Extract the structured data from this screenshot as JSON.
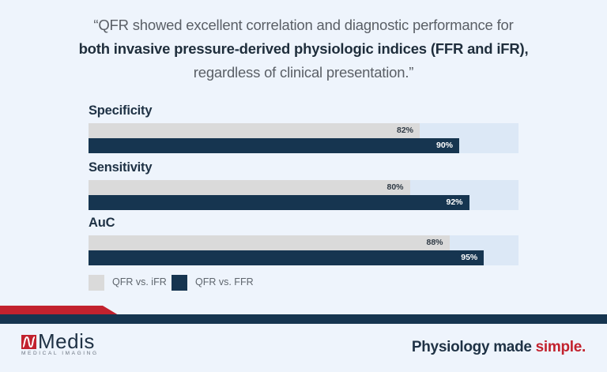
{
  "quote": {
    "line1": "“QFR showed excellent correlation and diagnostic performance for",
    "line2": "both invasive pressure-derived physiologic indices (FFR and iFR),",
    "line3": "regardless of clinical presentation.”"
  },
  "chart_data": {
    "type": "bar",
    "orientation": "horizontal",
    "title": "",
    "categories": [
      "Specificity",
      "Sensitivity",
      "AuC"
    ],
    "series": [
      {
        "name": "QFR vs. iFR",
        "values": [
          82,
          80,
          88
        ],
        "labels": [
          "82%",
          "80%",
          "88%"
        ],
        "color": "#dadada"
      },
      {
        "name": "QFR vs. FFR",
        "values": [
          90,
          92,
          95
        ],
        "labels": [
          "90%",
          "92%",
          "95%"
        ],
        "color": "#163550"
      }
    ],
    "unit": "%",
    "legend_position": "bottom-left",
    "grid": false
  },
  "legend": [
    {
      "label": "QFR vs. iFR",
      "color": "#dadada"
    },
    {
      "label": "QFR vs. FFR",
      "color": "#163550"
    }
  ],
  "footer": {
    "brand_name": "Medis",
    "brand_sub": "MEDICAL IMAGING",
    "tagline_main": "Physiology made ",
    "tagline_accent": "simple."
  },
  "colors": {
    "background": "#eef4fc",
    "navy": "#163550",
    "red": "#c2222e",
    "gray": "#dadada",
    "track": "#dce8f6"
  }
}
